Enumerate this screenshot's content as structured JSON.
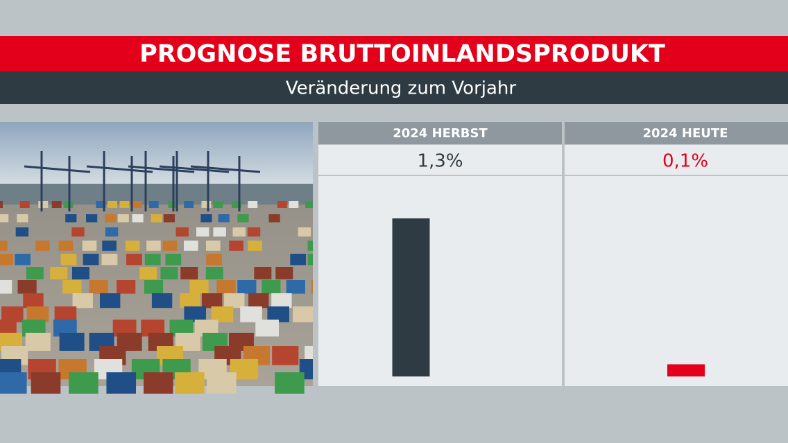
{
  "chart_data": {
    "type": "bar",
    "title": "PROGNOSE BRUTTOINLANDSPRODUKT",
    "subtitle": "Veränderung zum Vorjahr",
    "categories": [
      "2024 HERBST",
      "2024 HEUTE"
    ],
    "values": [
      1.3,
      0.1
    ],
    "value_labels": [
      "1,3%",
      "0,1%"
    ],
    "colors": [
      "#2f3b43",
      "#e2001a"
    ]
  }
}
